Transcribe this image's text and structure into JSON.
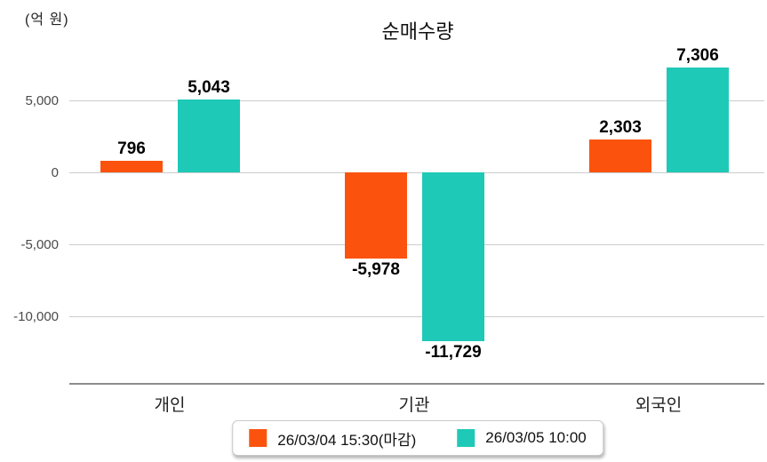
{
  "chart": {
    "unit_label": "(억 원)",
    "title": "순매수량"
  },
  "chart_data": {
    "type": "bar",
    "title": "순매수량",
    "ylabel": "(억 원)",
    "categories": [
      "개인",
      "기관",
      "외국인"
    ],
    "series": [
      {
        "name": "26/03/04 15:30(마감)",
        "color": "#fb530e",
        "values": [
          796,
          -5978,
          2303
        ],
        "value_labels": [
          "796",
          "-5,978",
          "2,303"
        ]
      },
      {
        "name": "26/03/05 10:00",
        "color": "#1ec9b7",
        "values": [
          5043,
          -11729,
          7306
        ],
        "value_labels": [
          "5,043",
          "-11,729",
          "7,306"
        ]
      }
    ],
    "y_ticks": [
      {
        "value": 5000,
        "label": "5,000"
      },
      {
        "value": 0,
        "label": "0"
      },
      {
        "value": -5000,
        "label": "-5,000"
      },
      {
        "value": -10000,
        "label": "-10,000"
      }
    ],
    "ylim": [
      -14700,
      8900
    ],
    "grid": true,
    "legend_position": "bottom",
    "colors": {
      "grid_line": "#cccccc",
      "axis_line": "#8c8c8c",
      "tick_text": "#4a4a4a",
      "value_text": "#000000",
      "background": "#ffffff"
    }
  }
}
